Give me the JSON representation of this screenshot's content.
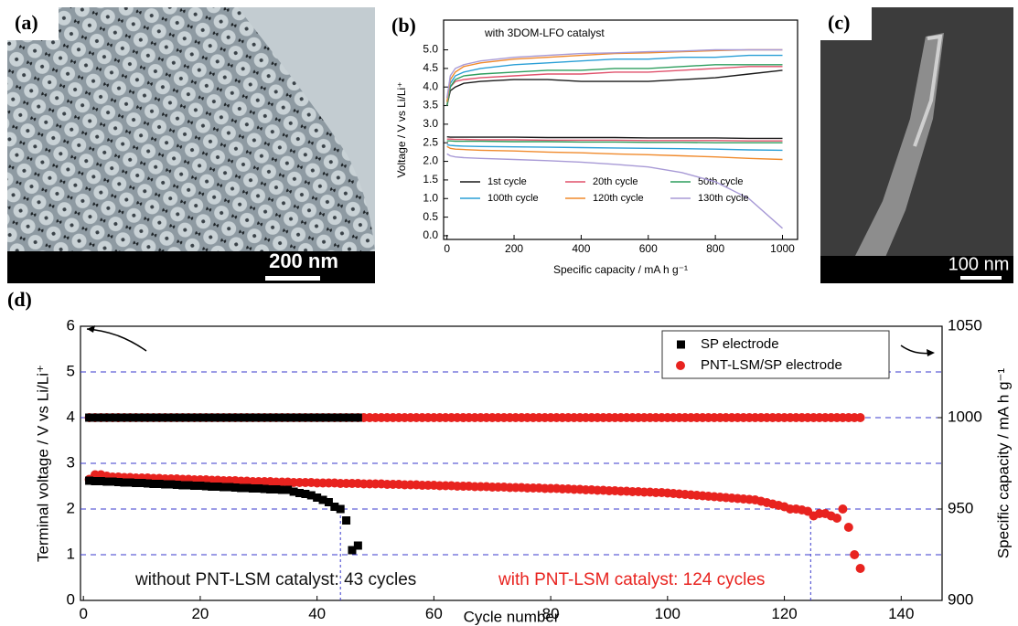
{
  "panels": [
    {
      "label": "(a)",
      "scale_bar": "200 nm"
    },
    {
      "label": "(c)",
      "scale_bar": "100 nm"
    }
  ],
  "chart_data": [
    {
      "type": "line",
      "label": "(b)",
      "annotation": "with 3DOM-LFO catalyst",
      "xlabel": "Specific capacity / mA h g⁻¹",
      "ylabel": "Voltage / V vs Li/Li⁺",
      "xlim": [
        -10,
        1045
      ],
      "xticks": [
        0,
        200,
        400,
        600,
        800,
        1000
      ],
      "ylim": [
        -0.1,
        5.8
      ],
      "yticks": [
        {
          "value": 0,
          "label": "0.0"
        },
        {
          "value": 0.5,
          "label": "0.5"
        },
        {
          "value": 1,
          "label": "1.0"
        },
        {
          "value": 1.5,
          "label": "1.5"
        },
        {
          "value": 2,
          "label": "2.0"
        },
        {
          "value": 2.5,
          "label": "2.5"
        },
        {
          "value": 3,
          "label": "3.0"
        },
        {
          "value": 3.5,
          "label": "3.5"
        },
        {
          "value": 4,
          "label": "4.0"
        },
        {
          "value": 4.5,
          "label": "4.5"
        },
        {
          "value": 5,
          "label": "5.0"
        }
      ],
      "x": [
        0,
        10,
        25,
        50,
        100,
        200,
        300,
        400,
        500,
        600,
        700,
        800,
        900,
        1000
      ],
      "series": [
        {
          "name": "1st cycle",
          "color": "#1a1a1a",
          "discharge": [
            2.66,
            2.65,
            2.65,
            2.65,
            2.65,
            2.65,
            2.64,
            2.64,
            2.64,
            2.63,
            2.63,
            2.63,
            2.62,
            2.62
          ],
          "charge": [
            3.5,
            3.9,
            4.0,
            4.1,
            4.15,
            4.2,
            4.2,
            4.15,
            4.15,
            4.15,
            4.2,
            4.25,
            4.35,
            4.45
          ]
        },
        {
          "name": "20th cycle",
          "color": "#e0526c",
          "discharge": [
            2.6,
            2.6,
            2.59,
            2.59,
            2.58,
            2.58,
            2.57,
            2.57,
            2.57,
            2.56,
            2.56,
            2.56,
            2.55,
            2.55
          ],
          "charge": [
            3.5,
            4.0,
            4.15,
            4.2,
            4.25,
            4.3,
            4.35,
            4.35,
            4.4,
            4.4,
            4.45,
            4.5,
            4.55,
            4.55
          ]
        },
        {
          "name": "50th cycle",
          "color": "#2e9e5e",
          "discharge": [
            2.55,
            2.55,
            2.54,
            2.54,
            2.54,
            2.53,
            2.53,
            2.52,
            2.52,
            2.51,
            2.51,
            2.5,
            2.5,
            2.5
          ],
          "charge": [
            3.5,
            4.0,
            4.2,
            4.3,
            4.35,
            4.4,
            4.45,
            4.45,
            4.5,
            4.5,
            4.55,
            4.6,
            4.6,
            4.6
          ]
        },
        {
          "name": "100th cycle",
          "color": "#2a9fd6",
          "discharge": [
            2.45,
            2.43,
            2.42,
            2.41,
            2.4,
            2.39,
            2.38,
            2.37,
            2.36,
            2.35,
            2.34,
            2.33,
            2.31,
            2.3
          ],
          "charge": [
            3.6,
            4.1,
            4.3,
            4.4,
            4.5,
            4.6,
            4.65,
            4.7,
            4.75,
            4.75,
            4.8,
            4.8,
            4.85,
            4.85
          ]
        },
        {
          "name": "120th cycle",
          "color": "#f08a2c",
          "discharge": [
            2.4,
            2.35,
            2.33,
            2.32,
            2.3,
            2.28,
            2.25,
            2.23,
            2.2,
            2.18,
            2.15,
            2.12,
            2.08,
            2.05
          ],
          "charge": [
            3.6,
            4.2,
            4.4,
            4.55,
            4.65,
            4.75,
            4.8,
            4.85,
            4.9,
            4.92,
            4.95,
            4.98,
            5.0,
            5.0
          ]
        },
        {
          "name": "130th cycle",
          "color": "#a89ad6",
          "discharge": [
            2.2,
            2.15,
            2.12,
            2.1,
            2.08,
            2.05,
            2.02,
            1.98,
            1.92,
            1.85,
            1.7,
            1.45,
            1.0,
            0.2
          ],
          "charge": [
            3.7,
            4.3,
            4.5,
            4.6,
            4.7,
            4.8,
            4.85,
            4.9,
            4.92,
            4.95,
            4.97,
            5.0,
            5.0,
            5.0
          ]
        }
      ]
    },
    {
      "type": "scatter",
      "label": "(d)",
      "xlabel": "Cycle number",
      "ylabel": "Terminal voltage / V vs Li/Li⁺",
      "y2label": "Specific capacity / mA h g⁻¹",
      "xlim": [
        -0.5,
        147
      ],
      "xticks": [
        0,
        20,
        40,
        60,
        80,
        100,
        120,
        140
      ],
      "ylim": [
        0,
        6
      ],
      "yticks": [
        0,
        1,
        2,
        3,
        4,
        5,
        6
      ],
      "y2lim": [
        900,
        1050
      ],
      "y2ticks": [
        900,
        950,
        1000,
        1050
      ],
      "grid": true,
      "legend": "upper right",
      "annotations": [
        {
          "text": "without PNT-LSM catalyst: 43 cycles",
          "color": "#111111"
        },
        {
          "text": "with PNT-LSM catalyst: 124 cycles",
          "color": "#e8231f"
        }
      ],
      "reference_lines": [
        {
          "x": 44,
          "y": 2.0
        },
        {
          "x": 124.5,
          "y": 1.95
        }
      ],
      "series": [
        {
          "name": "SP electrode",
          "color": "#000000",
          "marker": "square",
          "x": [
            1,
            2,
            3,
            4,
            5,
            6,
            7,
            8,
            9,
            10,
            11,
            12,
            13,
            14,
            15,
            16,
            17,
            18,
            19,
            20,
            21,
            22,
            23,
            24,
            25,
            26,
            27,
            28,
            29,
            30,
            31,
            32,
            33,
            34,
            35,
            36,
            37,
            38,
            39,
            40,
            41,
            42,
            43,
            44,
            45,
            46,
            47
          ],
          "values": [
            2.62,
            2.61,
            2.61,
            2.6,
            2.6,
            2.59,
            2.58,
            2.58,
            2.57,
            2.57,
            2.56,
            2.55,
            2.55,
            2.54,
            2.54,
            2.53,
            2.52,
            2.52,
            2.51,
            2.51,
            2.5,
            2.49,
            2.49,
            2.48,
            2.48,
            2.47,
            2.46,
            2.46,
            2.45,
            2.45,
            2.44,
            2.43,
            2.43,
            2.42,
            2.42,
            2.38,
            2.35,
            2.33,
            2.3,
            2.25,
            2.2,
            2.15,
            2.05,
            2.0,
            1.75,
            1.1,
            1.2
          ],
          "y2_values": [
            1000,
            1000,
            1000,
            1000,
            1000,
            1000,
            1000,
            1000,
            1000,
            1000,
            1000,
            1000,
            1000,
            1000,
            1000,
            1000,
            1000,
            1000,
            1000,
            1000,
            1000,
            1000,
            1000,
            1000,
            1000,
            1000,
            1000,
            1000,
            1000,
            1000,
            1000,
            1000,
            1000,
            1000,
            1000,
            1000,
            1000,
            1000,
            1000,
            1000,
            1000,
            1000,
            1000,
            1000,
            1000,
            1000,
            1000
          ]
        },
        {
          "name": "PNT-LSM/SP electrode",
          "color": "#e8231f",
          "marker": "circle",
          "x": [
            1,
            2,
            3,
            4,
            5,
            6,
            7,
            8,
            9,
            10,
            11,
            12,
            13,
            14,
            15,
            16,
            17,
            18,
            19,
            20,
            21,
            22,
            23,
            24,
            25,
            26,
            27,
            28,
            29,
            30,
            31,
            32,
            33,
            34,
            35,
            36,
            37,
            38,
            39,
            40,
            41,
            42,
            43,
            44,
            45,
            46,
            47,
            48,
            49,
            50,
            51,
            52,
            53,
            54,
            55,
            56,
            57,
            58,
            59,
            60,
            61,
            62,
            63,
            64,
            65,
            66,
            67,
            68,
            69,
            70,
            71,
            72,
            73,
            74,
            75,
            76,
            77,
            78,
            79,
            80,
            81,
            82,
            83,
            84,
            85,
            86,
            87,
            88,
            89,
            90,
            91,
            92,
            93,
            94,
            95,
            96,
            97,
            98,
            99,
            100,
            101,
            102,
            103,
            104,
            105,
            106,
            107,
            108,
            109,
            110,
            111,
            112,
            113,
            114,
            115,
            116,
            117,
            118,
            119,
            120,
            121,
            122,
            123,
            124,
            125,
            126,
            127,
            128,
            129,
            130,
            131,
            132,
            133
          ],
          "values": [
            2.65,
            2.75,
            2.75,
            2.72,
            2.7,
            2.7,
            2.69,
            2.69,
            2.68,
            2.68,
            2.68,
            2.67,
            2.67,
            2.66,
            2.66,
            2.66,
            2.65,
            2.65,
            2.64,
            2.64,
            2.64,
            2.63,
            2.63,
            2.62,
            2.62,
            2.62,
            2.61,
            2.61,
            2.6,
            2.6,
            2.6,
            2.6,
            2.59,
            2.59,
            2.59,
            2.58,
            2.58,
            2.58,
            2.58,
            2.57,
            2.57,
            2.57,
            2.57,
            2.56,
            2.56,
            2.56,
            2.56,
            2.55,
            2.55,
            2.55,
            2.55,
            2.54,
            2.54,
            2.54,
            2.53,
            2.53,
            2.53,
            2.52,
            2.52,
            2.52,
            2.51,
            2.51,
            2.51,
            2.5,
            2.5,
            2.5,
            2.49,
            2.49,
            2.49,
            2.48,
            2.48,
            2.48,
            2.47,
            2.47,
            2.47,
            2.46,
            2.46,
            2.46,
            2.45,
            2.45,
            2.45,
            2.44,
            2.44,
            2.43,
            2.43,
            2.42,
            2.42,
            2.41,
            2.41,
            2.4,
            2.4,
            2.39,
            2.39,
            2.38,
            2.38,
            2.37,
            2.37,
            2.36,
            2.36,
            2.35,
            2.34,
            2.33,
            2.32,
            2.31,
            2.3,
            2.29,
            2.28,
            2.27,
            2.26,
            2.25,
            2.24,
            2.23,
            2.22,
            2.21,
            2.2,
            2.17,
            2.14,
            2.11,
            2.08,
            2.05,
            2.0,
            2.0,
            1.98,
            1.95,
            1.85,
            1.9,
            1.9,
            1.85,
            1.8,
            2.0,
            1.6,
            1.0,
            0.7
          ],
          "y2_values": [
            1000,
            1000,
            1000,
            1000,
            1000,
            1000,
            1000,
            1000,
            1000,
            1000,
            1000,
            1000,
            1000,
            1000,
            1000,
            1000,
            1000,
            1000,
            1000,
            1000,
            1000,
            1000,
            1000,
            1000,
            1000,
            1000,
            1000,
            1000,
            1000,
            1000,
            1000,
            1000,
            1000,
            1000,
            1000,
            1000,
            1000,
            1000,
            1000,
            1000,
            1000,
            1000,
            1000,
            1000,
            1000,
            1000,
            1000,
            1000,
            1000,
            1000,
            1000,
            1000,
            1000,
            1000,
            1000,
            1000,
            1000,
            1000,
            1000,
            1000,
            1000,
            1000,
            1000,
            1000,
            1000,
            1000,
            1000,
            1000,
            1000,
            1000,
            1000,
            1000,
            1000,
            1000,
            1000,
            1000,
            1000,
            1000,
            1000,
            1000,
            1000,
            1000,
            1000,
            1000,
            1000,
            1000,
            1000,
            1000,
            1000,
            1000,
            1000,
            1000,
            1000,
            1000,
            1000,
            1000,
            1000,
            1000,
            1000,
            1000,
            1000,
            1000,
            1000,
            1000,
            1000,
            1000,
            1000,
            1000,
            1000,
            1000,
            1000,
            1000,
            1000,
            1000,
            1000,
            1000,
            1000,
            1000,
            1000,
            1000,
            1000,
            1000,
            1000,
            1000,
            1000,
            1000,
            1000,
            1000,
            1000,
            1000,
            1000,
            1000,
            1000
          ]
        }
      ]
    }
  ]
}
